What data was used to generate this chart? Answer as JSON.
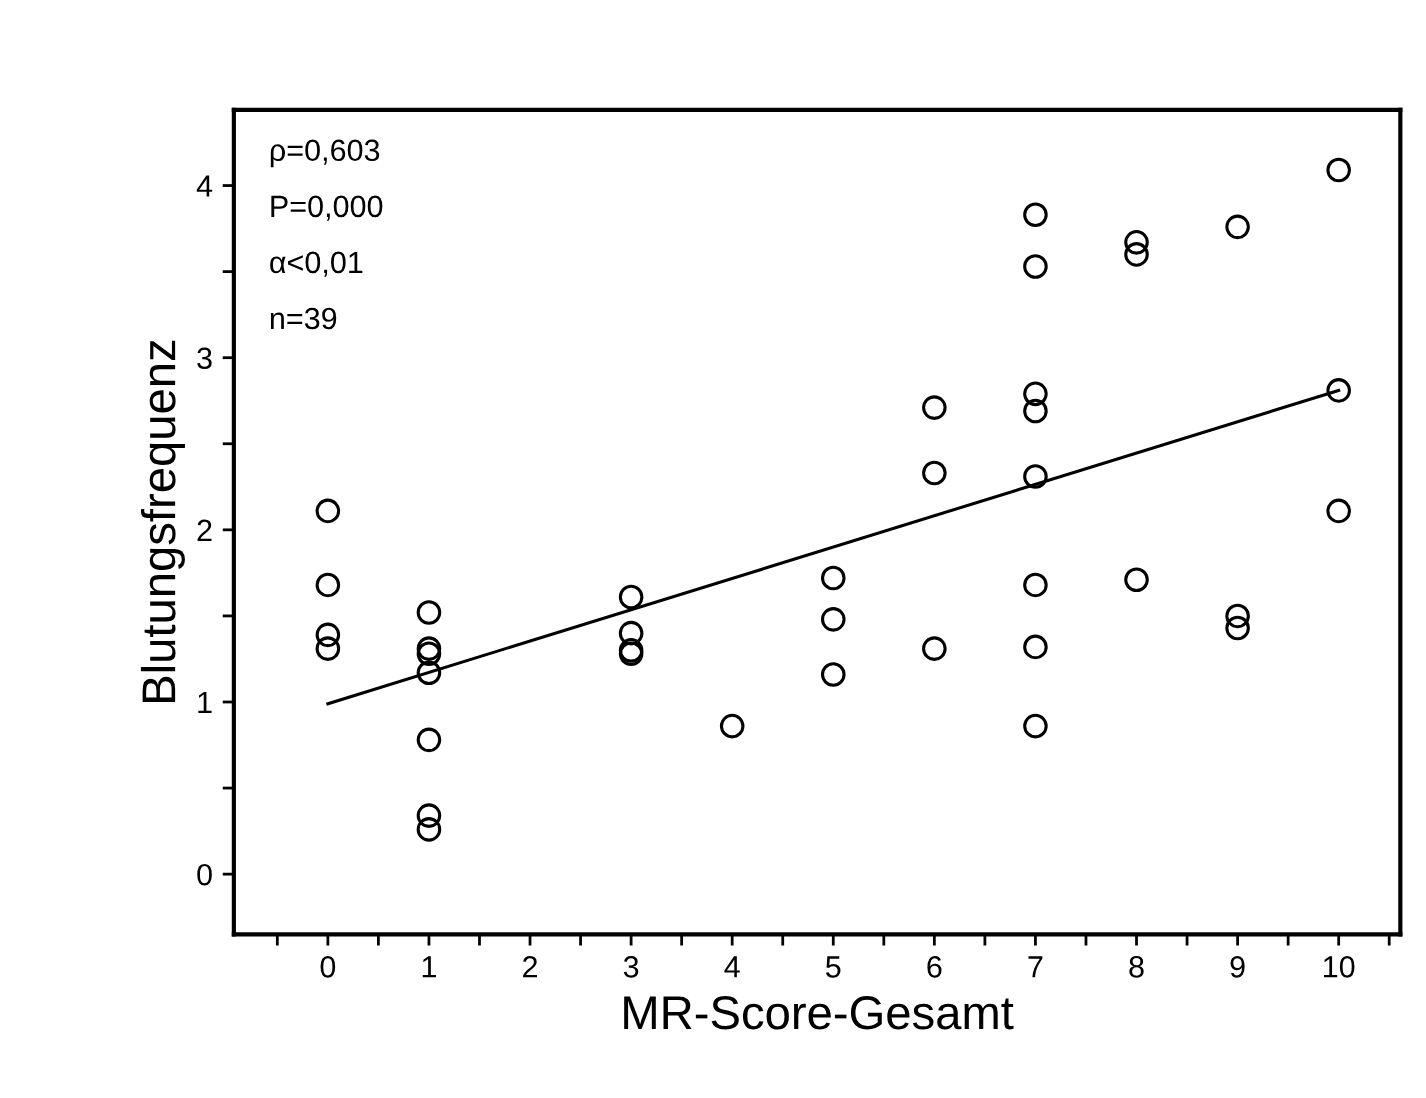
{
  "chart_data": {
    "type": "scatter",
    "xlabel": "MR-Score-Gesamt",
    "ylabel": "Blutungsfrequenz",
    "annotations": [
      "ρ=0,603",
      "P=0,000",
      "α<0,01",
      "n=39"
    ],
    "xlim": [
      -0.93,
      10.61
    ],
    "ylim": [
      -0.35,
      4.44
    ],
    "xticks": [
      0,
      1,
      2,
      3,
      4,
      5,
      6,
      7,
      8,
      9,
      10,
      {
        "value": -0.5,
        "label": null
      },
      {
        "value": 0.5,
        "label": null
      },
      {
        "value": 1.5,
        "label": null
      },
      {
        "value": 2.5,
        "label": null
      },
      {
        "value": 3.5,
        "label": null
      },
      {
        "value": 4.5,
        "label": null
      },
      {
        "value": 5.5,
        "label": null
      },
      {
        "value": 6.5,
        "label": null
      },
      {
        "value": 7.5,
        "label": null
      },
      {
        "value": 8.5,
        "label": null
      },
      {
        "value": 9.5,
        "label": null
      },
      {
        "value": 10.5,
        "label": null
      }
    ],
    "yticks": [
      0,
      1,
      2,
      3,
      4,
      {
        "value": 0.5,
        "label": null
      },
      {
        "value": 1.5,
        "label": null
      },
      {
        "value": 2.5,
        "label": null
      },
      {
        "value": 3.5,
        "label": null
      }
    ],
    "grid": false,
    "legend": false,
    "series": [
      {
        "marker": "circle",
        "color": "#000000",
        "x": [
          0,
          0,
          0,
          0,
          1,
          1,
          1,
          1,
          1,
          1,
          1,
          3,
          3,
          3,
          3,
          4,
          5,
          5,
          5,
          6,
          6,
          6,
          7,
          7,
          7,
          7,
          7,
          7,
          7,
          7,
          8,
          8,
          8,
          9,
          9,
          9,
          10,
          10,
          10
        ],
        "values": [
          2.11,
          1.68,
          1.39,
          1.31,
          1.52,
          1.31,
          1.28,
          1.17,
          0.78,
          0.34,
          0.26,
          1.61,
          1.4,
          1.3,
          1.28,
          0.86,
          1.72,
          1.48,
          1.16,
          2.71,
          2.33,
          1.31,
          3.83,
          3.53,
          2.79,
          2.69,
          2.31,
          1.68,
          1.32,
          0.86,
          3.67,
          3.6,
          1.71,
          3.76,
          1.5,
          1.43,
          4.09,
          2.81,
          2.11
        ]
      },
      {
        "type": "line",
        "color": "#000000",
        "x": [
          0,
          10
        ],
        "values": [
          0.99,
          2.81
        ]
      }
    ]
  }
}
